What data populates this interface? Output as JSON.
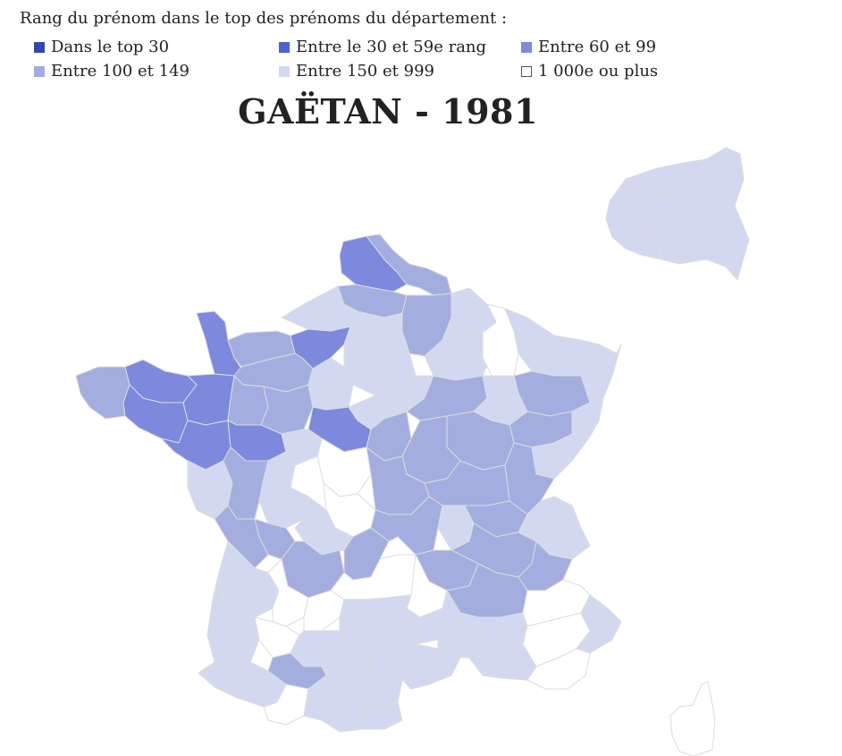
{
  "legend": {
    "title": "Rang du prénom dans le top des prénoms du département :",
    "items": [
      {
        "label": "Dans le top 30",
        "color": "#3148ad"
      },
      {
        "label": "Entre le 30 et 59e rang",
        "color": "#4f63cc"
      },
      {
        "label": "Entre 60 et 99",
        "color": "#7d89dc"
      },
      {
        "label": "Entre 100 et 149",
        "color": "#a4addf"
      },
      {
        "label": "Entre 150 et 999",
        "color": "#d3d8f1"
      },
      {
        "label": "1 000e ou plus",
        "color": "#ffffff"
      }
    ]
  },
  "map": {
    "title": "GAËTAN - 1981",
    "class_colors": {
      "rank_60_99": "#7d89dc",
      "rank_100_149": "#a4addf",
      "rank_150_999": "#d3d8f1",
      "rank_1000_plus": "#ffffff"
    }
  }
}
